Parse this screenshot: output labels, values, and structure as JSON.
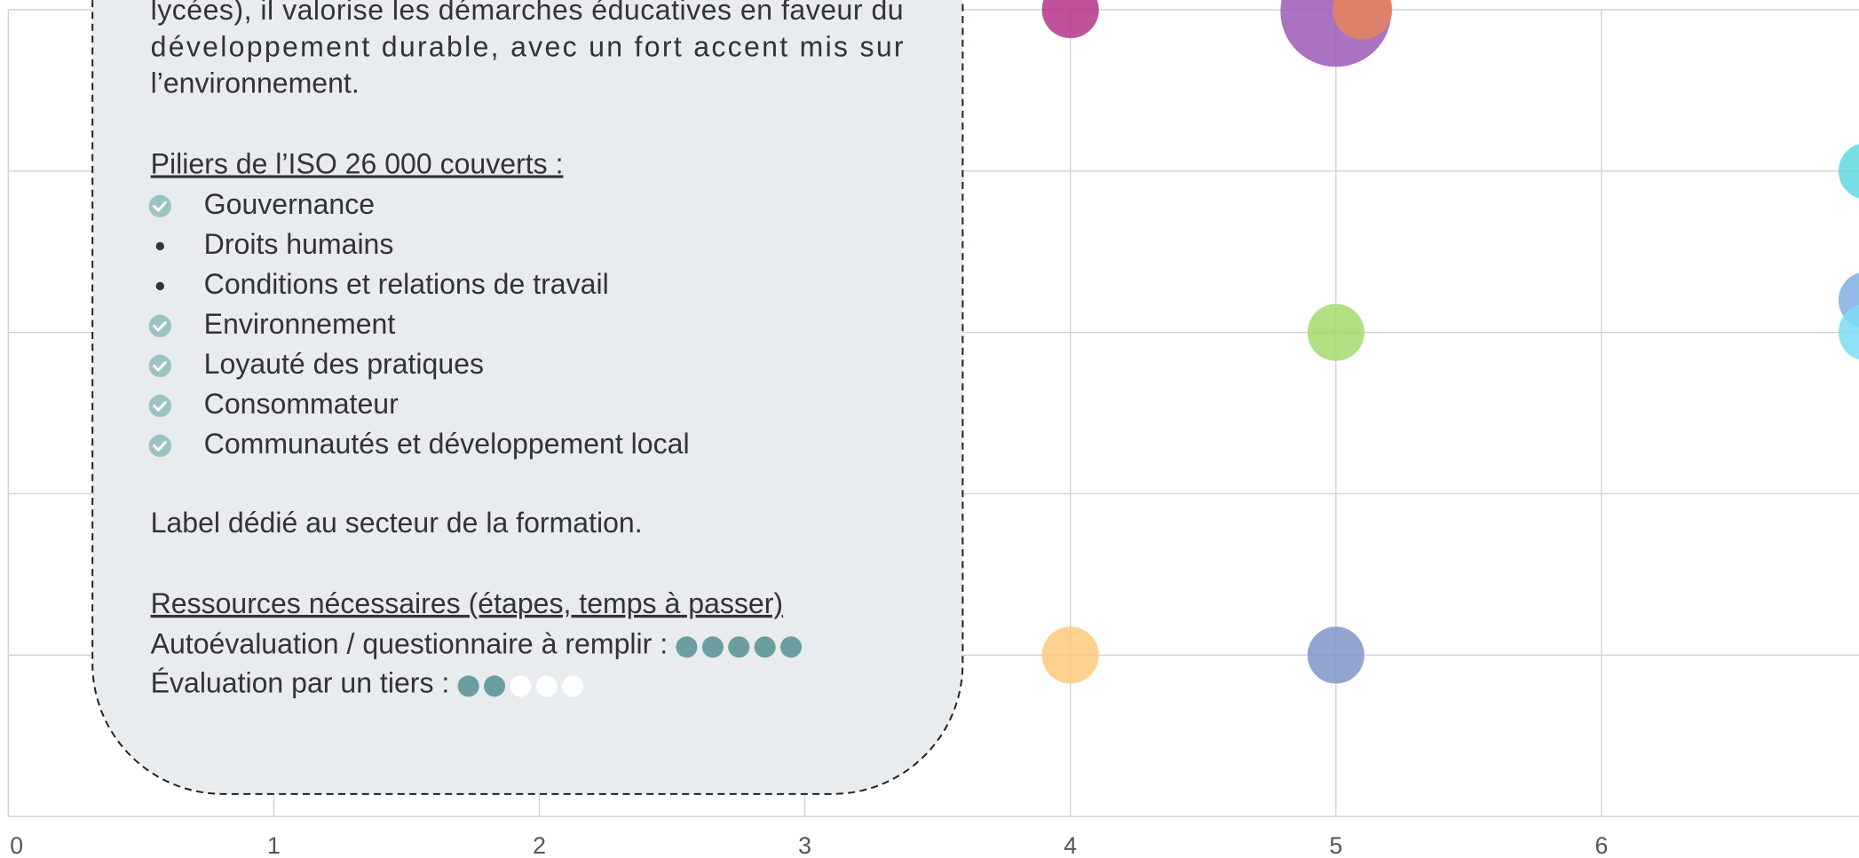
{
  "chart_data": {
    "type": "scatter",
    "x": [
      4,
      5,
      5.1,
      7,
      7,
      7,
      5,
      4,
      5
    ],
    "y": [
      5,
      4.99,
      5,
      4,
      3.2,
      3,
      3,
      1,
      1
    ],
    "sizes": [
      1,
      3.8,
      1.1,
      1,
      1,
      1,
      1,
      1,
      1
    ],
    "colors": [
      "#b5338a",
      "#9b59b6",
      "#e8845a",
      "#5fd8e0",
      "#7fb0e0",
      "#7ddcf5",
      "#a3d96b",
      "#ffc97a",
      "#7f94c8"
    ],
    "xlim": [
      0,
      6.97
    ],
    "xticks": [
      0,
      1,
      2,
      3,
      4,
      5,
      6
    ],
    "ylim": [
      0,
      5.06
    ],
    "yticks": [
      0,
      1,
      2,
      3,
      4,
      5
    ],
    "grid": true
  },
  "tooltip": {
    "paragraph": [
      "lycées), il valorise les démarches éducatives en faveur du",
      "développement durable, avec un fort accent mis sur",
      "l’environnement."
    ],
    "pillars_heading": "Piliers de l’ISO 26 000 couverts :",
    "pillars": [
      {
        "label": "Gouvernance",
        "checked": true
      },
      {
        "label": "Droits humains",
        "checked": false
      },
      {
        "label": "Conditions et relations de travail",
        "checked": false
      },
      {
        "label": "Environnement",
        "checked": true
      },
      {
        "label": "Loyauté des pratiques",
        "checked": true
      },
      {
        "label": "Consommateur",
        "checked": true
      },
      {
        "label": "Communautés et développement local",
        "checked": true
      }
    ],
    "note": "Label dédié au secteur de la formation.",
    "resources_heading": "Ressources nécessaires (étapes, temps à passer)",
    "resources": [
      {
        "label": "Autoévaluation / questionnaire à remplir :",
        "filled": 5,
        "total": 5
      },
      {
        "label": "Évaluation par un tiers :",
        "filled": 2,
        "total": 5
      }
    ]
  }
}
